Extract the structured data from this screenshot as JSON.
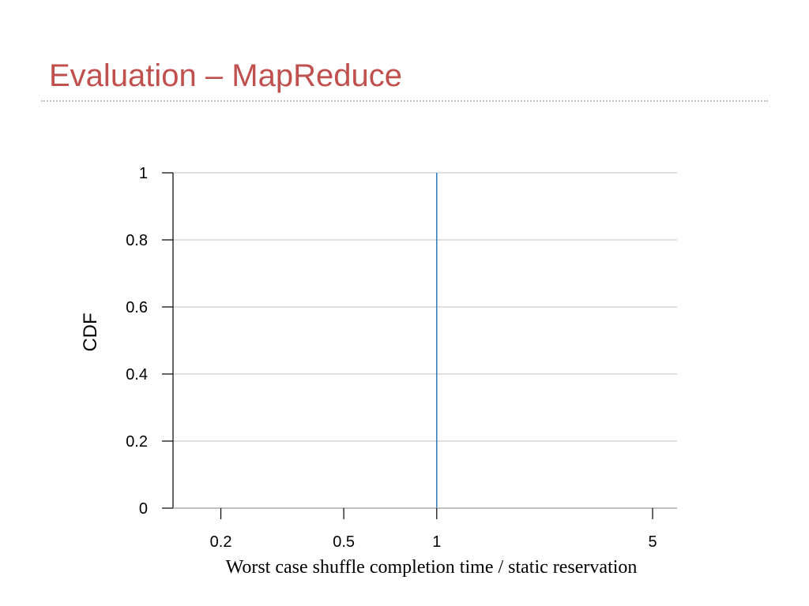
{
  "slide": {
    "title": "Evaluation – MapReduce",
    "title_color": "#c0504d"
  },
  "chart_data": {
    "type": "line",
    "title": "",
    "xlabel": "Worst case shuffle completion time / static reservation",
    "ylabel": "CDF",
    "x_scale": "log",
    "xlim": [
      0.14,
      6
    ],
    "ylim": [
      0,
      1
    ],
    "x_ticks": [
      0.2,
      0.5,
      1,
      5
    ],
    "x_tick_labels": [
      "0.2",
      "0.5",
      "1",
      "5"
    ],
    "y_ticks": [
      0,
      0.2,
      0.4,
      0.6,
      0.8,
      1
    ],
    "y_tick_labels": [
      "0",
      "0.2",
      "0.4",
      "0.6",
      "0.8",
      "1"
    ],
    "grid": "horizontal",
    "series": [
      {
        "color": "#1f6fb4",
        "x": [
          1,
          1
        ],
        "y": [
          0,
          1
        ]
      }
    ]
  }
}
